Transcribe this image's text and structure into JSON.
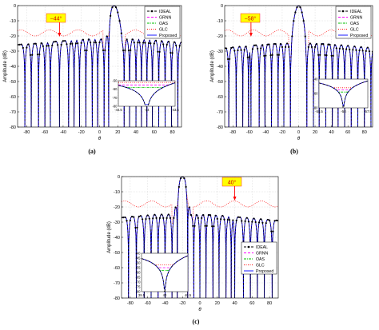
{
  "panels": [
    {
      "label": "(a)",
      "annotation": "−44°",
      "null_angle": -44,
      "chart_data": {
        "type": "line",
        "xlabel": "θ",
        "ylabel": "Amplitude (dB)",
        "xlim": [
          -90,
          90
        ],
        "ylim": [
          -80,
          0
        ],
        "xticks": [
          -80,
          -60,
          -40,
          -20,
          0,
          20,
          40,
          60,
          80
        ],
        "yticks": [
          0,
          -10,
          -20,
          -30,
          -40,
          -50,
          -60,
          -70,
          -80
        ],
        "grid": true,
        "legend_position": "top-right",
        "main_lobe": 16,
        "sidelobe_level": -22,
        "sidelobes": [
          -85,
          -78,
          -71,
          -64,
          -57,
          -51,
          -37,
          -31,
          -25,
          -18,
          -11,
          -5,
          2,
          30,
          37,
          43,
          49,
          55,
          62,
          68,
          75,
          82,
          89
        ],
        "nulls": [
          -82,
          -75,
          -67,
          -60,
          -54,
          -44,
          -34,
          -28,
          -22,
          -15,
          -8,
          -2,
          5,
          10,
          27,
          33,
          40,
          46,
          52,
          58,
          65,
          72,
          79,
          86
        ],
        "series": [
          {
            "name": "IDEAL",
            "color": "#000000",
            "style": "dash-dot-marker"
          },
          {
            "name": "GRNN",
            "color": "#ff00ff",
            "style": "dashed"
          },
          {
            "name": "OAS",
            "color": "#00c000",
            "style": "dash-dot"
          },
          {
            "name": "GLC",
            "color": "#ff0000",
            "style": "dotted"
          },
          {
            "name": "Proposed",
            "color": "#0000ff",
            "style": "solid"
          }
        ],
        "inset": {
          "xlim": [
            -44.5,
            -43.5
          ],
          "ylim": [
            -80,
            -50
          ],
          "xticks": [
            "-44.5",
            "-44",
            "-43.5"
          ],
          "yticks": [
            "-50",
            "-60",
            "-70",
            "-80"
          ],
          "null_angle": -44
        }
      }
    },
    {
      "label": "(b)",
      "annotation": "−58°",
      "null_angle": -58,
      "chart_data": {
        "type": "line",
        "xlabel": "θ",
        "ylabel": "Amplitude (dB)",
        "xlim": [
          -90,
          90
        ],
        "ylim": [
          -80,
          0
        ],
        "xticks": [
          -80,
          -60,
          -40,
          -20,
          0,
          20,
          40,
          60,
          80
        ],
        "yticks": [
          0,
          -10,
          -20,
          -30,
          -40,
          -50,
          -60,
          -70,
          -80
        ],
        "grid": true,
        "legend_position": "top-right",
        "main_lobe": 0,
        "sidelobe_level": -25,
        "sidelobes": [
          -88,
          -80,
          -72,
          -65,
          -52,
          -44,
          -37,
          -29,
          -21,
          -14,
          14,
          21,
          29,
          37,
          44,
          52,
          60,
          68,
          76,
          84
        ],
        "nulls": [
          -85,
          -76,
          -68,
          -61,
          -58,
          -48,
          -41,
          -33,
          -25,
          -18,
          -10,
          10,
          18,
          25,
          33,
          41,
          48,
          56,
          64,
          72,
          80,
          88
        ],
        "series": [
          {
            "name": "IDEAL",
            "color": "#000000",
            "style": "dash-dot-marker"
          },
          {
            "name": "GRNN",
            "color": "#ff00ff",
            "style": "dashed"
          },
          {
            "name": "OAS",
            "color": "#00c000",
            "style": "dash-dot"
          },
          {
            "name": "GLC",
            "color": "#ff0000",
            "style": "dotted"
          },
          {
            "name": "Proposed",
            "color": "#0000ff",
            "style": "solid"
          }
        ],
        "inset": {
          "xlim": [
            -58.5,
            -57.5
          ],
          "ylim": [
            -80,
            -40
          ],
          "xticks": [
            "-58.5",
            "-58",
            "-57.5"
          ],
          "yticks": [
            "-40",
            "-60",
            "-80"
          ],
          "null_angle": -58
        }
      }
    },
    {
      "label": "(c)",
      "annotation": "40°",
      "null_angle": 40,
      "chart_data": {
        "type": "line",
        "xlabel": "θ",
        "ylabel": "Amplitude (dB)",
        "xlim": [
          -90,
          90
        ],
        "ylim": [
          -80,
          0
        ],
        "xticks": [
          -80,
          -60,
          -40,
          -20,
          0,
          20,
          40,
          60,
          80
        ],
        "yticks": [
          0,
          -10,
          -20,
          -30,
          -40,
          -50,
          -60,
          -70,
          -80
        ],
        "grid": true,
        "legend_position": "bottom-right",
        "main_lobe": -20,
        "sidelobe_level": -25,
        "sidelobes": [
          -86,
          -77,
          -68,
          -60,
          -53,
          -44,
          -36,
          -29,
          -4,
          3,
          11,
          19,
          26,
          33,
          47,
          54,
          62,
          70,
          79,
          88
        ],
        "nulls": [
          -82,
          -73,
          -64,
          -56,
          -48,
          -40,
          -32,
          -26,
          -14,
          -7,
          0,
          7,
          15,
          22,
          30,
          36,
          40,
          50,
          58,
          66,
          74,
          83
        ],
        "series": [
          {
            "name": "IDEAL",
            "color": "#000000",
            "style": "dash-dot-marker"
          },
          {
            "name": "GRNN",
            "color": "#ff00ff",
            "style": "dashed"
          },
          {
            "name": "OAS",
            "color": "#00c000",
            "style": "dash-dot"
          },
          {
            "name": "GLC",
            "color": "#ff0000",
            "style": "dotted"
          },
          {
            "name": "Proposed",
            "color": "#0000ff",
            "style": "solid"
          }
        ],
        "inset": {
          "xlim": [
            39.5,
            40.5
          ],
          "ylim": [
            -80,
            -40
          ],
          "xticks": [
            "39.5",
            "40",
            "40.5"
          ],
          "yticks": [
            "-40",
            "-45",
            "-50",
            "-55",
            "-60",
            "-65",
            "-70",
            "-75",
            "-80"
          ],
          "null_angle": 40
        }
      }
    }
  ]
}
